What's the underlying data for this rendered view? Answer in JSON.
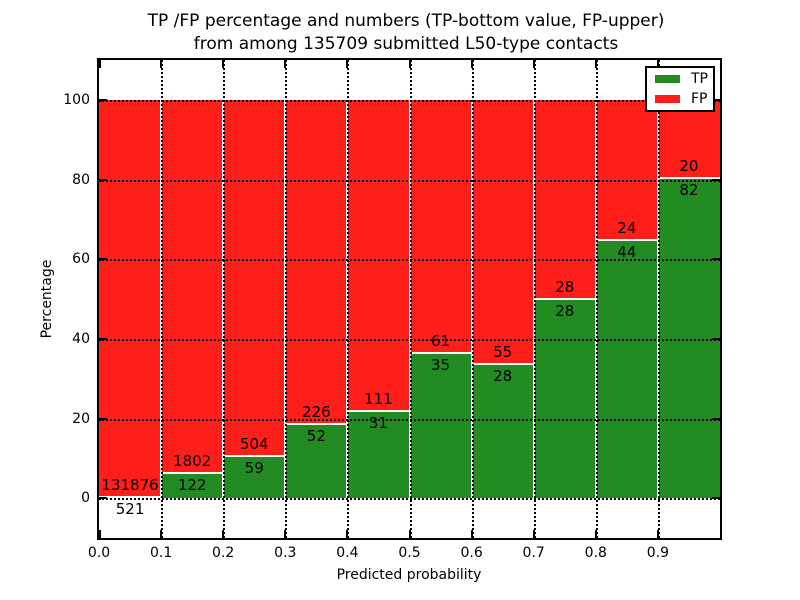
{
  "chart_data": {
    "type": "bar",
    "subtype": "stacked-100-percent-histogram",
    "title": [
      "TP /FP percentage and numbers (TP-bottom value, FP-upper)",
      "from among 135709 submitted L50-type contacts"
    ],
    "xlabel": "Predicted probability",
    "ylabel": "Percentage",
    "total_submitted": 135709,
    "categories": [
      "0.0",
      "0.1",
      "0.2",
      "0.3",
      "0.4",
      "0.5",
      "0.6",
      "0.7",
      "0.8",
      "0.9"
    ],
    "bin_width": 0.1,
    "series": [
      {
        "name": "TP",
        "color": "#228b22",
        "counts": [
          521,
          122,
          59,
          52,
          31,
          35,
          28,
          28,
          44,
          82
        ],
        "percent": [
          0.39,
          6.34,
          10.48,
          18.71,
          21.83,
          36.46,
          33.73,
          50.0,
          64.71,
          80.39
        ]
      },
      {
        "name": "FP",
        "color": "#ff1e19",
        "counts": [
          131876,
          1802,
          504,
          226,
          111,
          61,
          55,
          28,
          24,
          20
        ],
        "percent": [
          99.61,
          93.66,
          89.52,
          81.29,
          78.17,
          63.54,
          66.27,
          50.0,
          35.29,
          19.61
        ]
      }
    ],
    "x_tick_labels": [
      "0.0",
      "0.1",
      "0.2",
      "0.3",
      "0.4",
      "0.5",
      "0.6",
      "0.7",
      "0.8",
      "0.9"
    ],
    "y_tick_labels": [
      "0",
      "20",
      "40",
      "60",
      "80",
      "100"
    ],
    "y_tick_values": [
      0,
      20,
      40,
      60,
      80,
      100
    ],
    "xlim": [
      0.0,
      1.0
    ],
    "ylim": [
      -10,
      110
    ],
    "grid": "dotted-both-axes-above-bars",
    "legend_position": "upper right",
    "bar_edge_color": "#ffffff"
  },
  "colors": {
    "background": "#ffffff",
    "axis": "#000000",
    "text": "#000000",
    "tp_green": "#228b22",
    "fp_red": "#ff1e19"
  }
}
